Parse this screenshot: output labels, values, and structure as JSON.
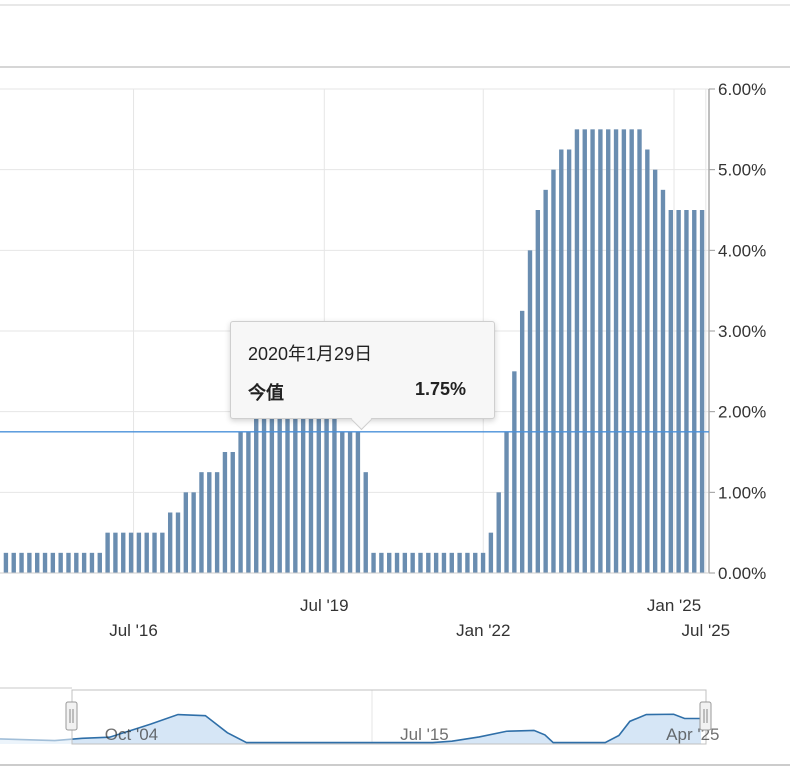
{
  "tooltip": {
    "date": "2020年1月29日",
    "label": "今值",
    "value": "1.75%"
  },
  "colors": {
    "bar": "#6a8db0",
    "crosshair": "#4a90d9",
    "grid": "#e6e6e6",
    "navigator_fill": "#cfe2f5",
    "navigator_line": "#2f6fa8"
  },
  "chart_data": {
    "type": "bar",
    "ylim": [
      0,
      6
    ],
    "y_ticks": [
      {
        "value": 0,
        "label": "0.00%"
      },
      {
        "value": 1,
        "label": "1.00%"
      },
      {
        "value": 2,
        "label": "2.00%"
      },
      {
        "value": 3,
        "label": "3.00%"
      },
      {
        "value": 4,
        "label": "4.00%"
      },
      {
        "value": 5,
        "label": "5.00%"
      },
      {
        "value": 6,
        "label": "6.00%"
      }
    ],
    "x_ticks": [
      {
        "label": "Jul '16",
        "row": 2,
        "x": 2016.5
      },
      {
        "label": "Jul '19",
        "row": 1,
        "x": 2019.5
      },
      {
        "label": "Jan '22",
        "row": 2,
        "x": 2022.0
      },
      {
        "label": "Jan '25",
        "row": 1,
        "x": 2025.0
      },
      {
        "label": "Jul '25",
        "row": 2,
        "x": 2025.5
      }
    ],
    "x_range": [
      2014.4,
      2025.55
    ],
    "crosshair_value": 1.75,
    "values": [
      0.25,
      0.25,
      0.25,
      0.25,
      0.25,
      0.25,
      0.25,
      0.25,
      0.25,
      0.25,
      0.25,
      0.25,
      0.25,
      0.5,
      0.5,
      0.5,
      0.5,
      0.5,
      0.5,
      0.5,
      0.5,
      0.75,
      0.75,
      1.0,
      1.0,
      1.25,
      1.25,
      1.25,
      1.5,
      1.5,
      1.75,
      1.75,
      2.0,
      2.0,
      2.0,
      2.0,
      2.0,
      2.0,
      2.0,
      2.0,
      2.0,
      2.0,
      2.0,
      1.75,
      1.75,
      1.75,
      1.25,
      0.25,
      0.25,
      0.25,
      0.25,
      0.25,
      0.25,
      0.25,
      0.25,
      0.25,
      0.25,
      0.25,
      0.25,
      0.25,
      0.25,
      0.25,
      0.5,
      1.0,
      1.75,
      2.5,
      3.25,
      4.0,
      4.5,
      4.75,
      5.0,
      5.25,
      5.25,
      5.5,
      5.5,
      5.5,
      5.5,
      5.5,
      5.5,
      5.5,
      5.5,
      5.5,
      5.25,
      5.0,
      4.75,
      4.5,
      4.5,
      4.5,
      4.5,
      4.5
    ]
  },
  "navigator": {
    "labels": [
      {
        "label": "Oct '04",
        "x": 2004.8
      },
      {
        "label": "Jul '15",
        "x": 2015.5
      },
      {
        "label": "Apr '25",
        "x": 2025.3
      }
    ],
    "range": [
      2000.0,
      2026.0
    ],
    "series": [
      [
        2000.0,
        0.9
      ],
      [
        2002.0,
        0.6
      ],
      [
        2003.0,
        1.0
      ],
      [
        2004.0,
        1.2
      ],
      [
        2005.5,
        3.5
      ],
      [
        2006.5,
        5.2
      ],
      [
        2007.5,
        5.0
      ],
      [
        2008.3,
        2.0
      ],
      [
        2009.0,
        0.25
      ],
      [
        2015.8,
        0.25
      ],
      [
        2016.5,
        0.5
      ],
      [
        2017.5,
        1.25
      ],
      [
        2018.5,
        2.25
      ],
      [
        2019.5,
        2.4
      ],
      [
        2019.9,
        1.6
      ],
      [
        2020.2,
        0.25
      ],
      [
        2022.1,
        0.25
      ],
      [
        2022.6,
        1.5
      ],
      [
        2023.0,
        4.0
      ],
      [
        2023.6,
        5.2
      ],
      [
        2024.6,
        5.25
      ],
      [
        2025.0,
        4.5
      ],
      [
        2025.6,
        4.5
      ]
    ]
  }
}
